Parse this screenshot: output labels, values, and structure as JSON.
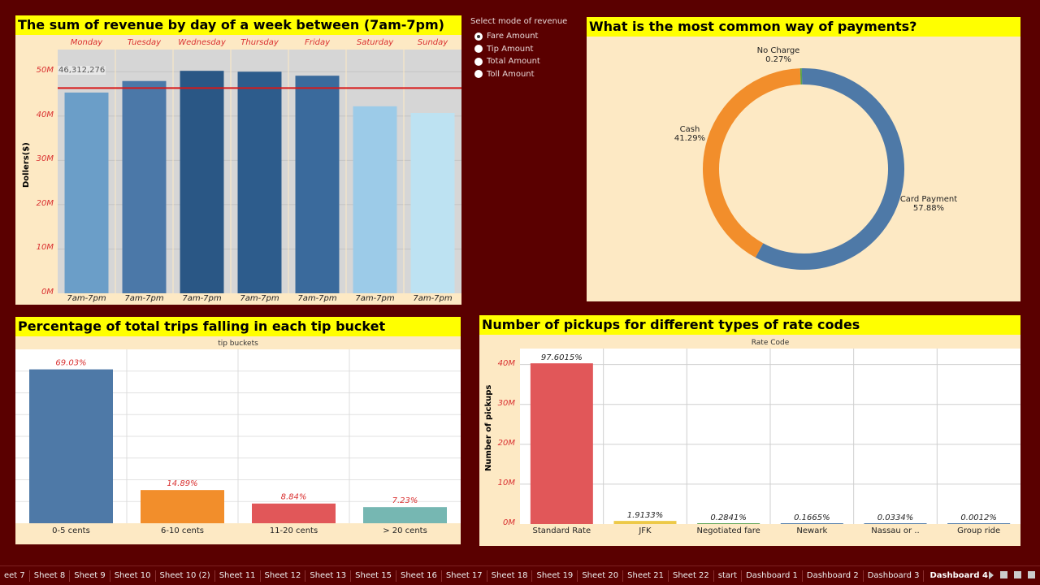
{
  "revenue": {
    "title": "The sum of revenue by  day of a week between (7am-7pm)",
    "ylabel": "Dollers($)",
    "yticks": [
      "50M",
      "40M",
      "30M",
      "20M",
      "10M",
      "0M"
    ],
    "days": [
      "Monday",
      "Tuesday",
      "Wednesday",
      "Thursday",
      "Friday",
      "Saturday",
      "Sunday"
    ],
    "bottom": [
      "7am-7pm",
      "7am-7pm",
      "7am-7pm",
      "7am-7pm",
      "7am-7pm",
      "7am-7pm",
      "7am-7pm"
    ],
    "ref_label": "46,312,276"
  },
  "radio": {
    "title": "Select mode of revenue",
    "options": [
      "Fare Amount",
      "Tip Amount",
      "Total Amount",
      "Toll Amount"
    ],
    "selected": "Fare Amount"
  },
  "payments": {
    "title": "What is the most common way of payments?",
    "slices": [
      {
        "name": "Card Payment",
        "pct": "57.88%",
        "color": "#4e79a7"
      },
      {
        "name": "Cash",
        "pct": "41.29%",
        "color": "#f28e2b"
      },
      {
        "name": "No Charge",
        "pct": "0.27%",
        "color": "#59a14f"
      }
    ]
  },
  "tips": {
    "title": "Percentage of total trips falling in each tip bucket",
    "header": "tip buckets",
    "categories": [
      "0-5 cents",
      "6-10 cents",
      "11-20 cents",
      "> 20 cents"
    ],
    "labels": [
      "69.03%",
      "14.89%",
      "8.84%",
      "7.23%"
    ]
  },
  "rates": {
    "title": "Number of pickups for different types of rate codes",
    "header": "Rate Code",
    "ylabel": "Number of pickups",
    "yticks": [
      "40M",
      "30M",
      "20M",
      "10M",
      "0M"
    ],
    "categories": [
      "Standard Rate",
      "JFK",
      "Negotiated fare",
      "Newark",
      "Nassau or ..",
      "Group ride"
    ],
    "labels": [
      "97.6015%",
      "1.9133%",
      "0.2841%",
      "0.1665%",
      "0.0334%",
      "0.0012%"
    ]
  },
  "tabs": {
    "items": [
      "eet 7",
      "Sheet 8",
      "Sheet 9",
      "Sheet 10",
      "Sheet 10 (2)",
      "Sheet 11",
      "Sheet 12",
      "Sheet 13",
      "Sheet 15",
      "Sheet 16",
      "Sheet 17",
      "Sheet 18",
      "Sheet 19",
      "Sheet 20",
      "Sheet 21",
      "Sheet 22",
      "start",
      "Dashboard 1",
      "Dashboard 2",
      "Dashboard 3",
      "Dashboard 4"
    ],
    "active": "Dashboard 4"
  },
  "chart_data": [
    {
      "type": "bar",
      "title": "The sum of revenue by  day of a week between (7am-7pm)",
      "ylabel": "Dollers($)",
      "categories": [
        "Monday",
        "Tuesday",
        "Wednesday",
        "Thursday",
        "Friday",
        "Saturday",
        "Sunday"
      ],
      "values": [
        45300000,
        47900000,
        50200000,
        50000000,
        49100000,
        42200000,
        40700000
      ],
      "colors": [
        "#6b9ec8",
        "#4b78a8",
        "#2a5785",
        "#2d5c8c",
        "#3a6a9c",
        "#9ccbe8",
        "#bde2f2"
      ],
      "ylim": [
        0,
        55000000
      ],
      "reference_line": 46312276,
      "grid": true
    },
    {
      "type": "pie",
      "title": "What is the most common way of payments?",
      "categories": [
        "Card Payment",
        "Cash",
        "No Charge"
      ],
      "values": [
        57.88,
        41.29,
        0.27
      ]
    },
    {
      "type": "bar",
      "title": "Percentage of total trips falling in each tip bucket",
      "categories": [
        "0-5 cents",
        "6-10 cents",
        "11-20 cents",
        "> 20 cents"
      ],
      "values": [
        69.03,
        14.89,
        8.84,
        7.23
      ],
      "colors": [
        "#4e79a7",
        "#f28e2b",
        "#e15759",
        "#76b7b2"
      ],
      "ylim": [
        0,
        78
      ],
      "grid": true
    },
    {
      "type": "bar",
      "title": "Number of pickups for different types of rate codes",
      "ylabel": "Number of pickups",
      "categories": [
        "Standard Rate",
        "JFK",
        "Negotiated fare",
        "Newark",
        "Nassau or ..",
        "Group ride"
      ],
      "values": [
        40300000,
        790000,
        117000,
        69000,
        14000,
        500
      ],
      "percent_labels": [
        97.6015,
        1.9133,
        0.2841,
        0.1665,
        0.0334,
        0.0012
      ],
      "colors": [
        "#e15759",
        "#edc948",
        "#59a14f",
        "#4e79a7",
        "#4e79a7",
        "#4e79a7"
      ],
      "ylim": [
        0,
        44000000
      ],
      "grid": true
    }
  ]
}
